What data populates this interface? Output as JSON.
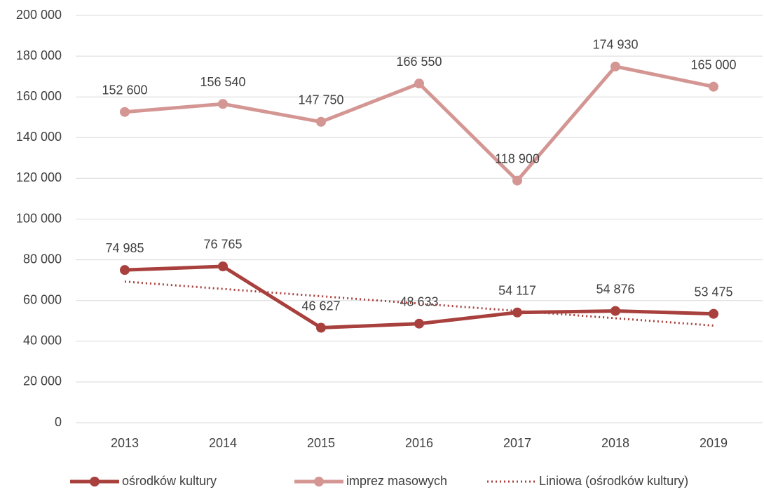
{
  "chart_data": {
    "type": "line",
    "categories": [
      "2013",
      "2014",
      "2015",
      "2016",
      "2017",
      "2018",
      "2019"
    ],
    "series": [
      {
        "name": "ośrodków kultury",
        "color": "#a8403d",
        "line_style": "solid",
        "markers": true,
        "values": [
          74985,
          76765,
          46627,
          48633,
          54117,
          54876,
          53475
        ],
        "value_labels": [
          "74 985",
          "76 765",
          "46 627",
          "48 633",
          "54 117",
          "54 876",
          "53 475"
        ]
      },
      {
        "name": "imprez masowych",
        "color": "#d49693",
        "line_style": "solid",
        "markers": true,
        "values": [
          152600,
          156540,
          147750,
          166550,
          118900,
          174930,
          165000
        ],
        "value_labels": [
          "152 600",
          "156 540",
          "147 750",
          "166 550",
          "118 900",
          "174 930",
          "165 000"
        ]
      },
      {
        "name": "Liniowa (ośrodków kultury)",
        "color": "#a8403d",
        "line_style": "dotted",
        "markers": false,
        "values": [
          69299,
          65698,
          62098,
          58497,
          54896,
          51296,
          47695
        ]
      }
    ],
    "ylim": [
      0,
      200000
    ],
    "yticks": [
      {
        "value": 0,
        "label": "0"
      },
      {
        "value": 20000,
        "label": "20 000"
      },
      {
        "value": 40000,
        "label": "40 000"
      },
      {
        "value": 60000,
        "label": "60 000"
      },
      {
        "value": 80000,
        "label": "80 000"
      },
      {
        "value": 100000,
        "label": "100 000"
      },
      {
        "value": 120000,
        "label": "120 000"
      },
      {
        "value": 140000,
        "label": "140 000"
      },
      {
        "value": 160000,
        "label": "160 000"
      },
      {
        "value": 180000,
        "label": "180 000"
      },
      {
        "value": 200000,
        "label": "200 000"
      }
    ],
    "grid": true,
    "legend": "bottom"
  }
}
